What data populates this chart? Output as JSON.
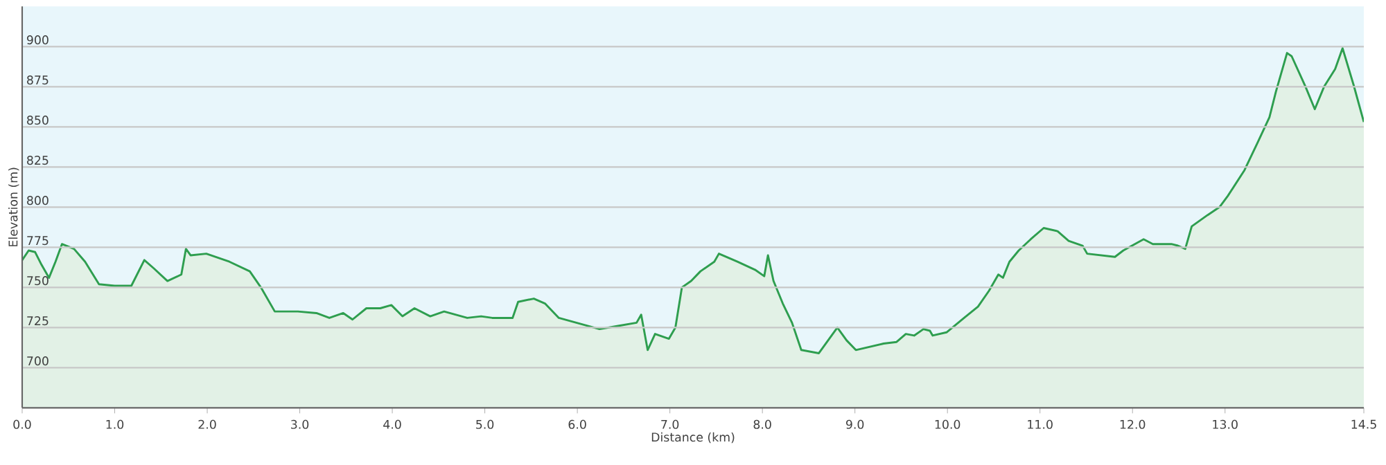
{
  "chart_data": {
    "type": "area",
    "xlabel": "Distance  (km)",
    "ylabel": "Elevation (m)",
    "color": "#2e9e4f",
    "grid": "y",
    "xlim": [
      0,
      14.5
    ],
    "ylim": [
      675,
      925
    ],
    "xticks": [
      {
        "value": 0,
        "label": "0.0"
      },
      {
        "value": 1,
        "label": "1.0"
      },
      {
        "value": 2,
        "label": "2.0"
      },
      {
        "value": 3,
        "label": "3.0"
      },
      {
        "value": 4,
        "label": "4.0"
      },
      {
        "value": 5,
        "label": "5.0"
      },
      {
        "value": 6,
        "label": "6.0"
      },
      {
        "value": 7,
        "label": "7.0"
      },
      {
        "value": 8,
        "label": "8.0"
      },
      {
        "value": 9,
        "label": "9.0"
      },
      {
        "value": 10,
        "label": "10.0"
      },
      {
        "value": 11,
        "label": "11.0"
      },
      {
        "value": 12,
        "label": "12.0"
      },
      {
        "value": 13,
        "label": "13.0"
      },
      {
        "value": 14.5,
        "label": "14.5"
      }
    ],
    "yticks": [
      700,
      725,
      750,
      775,
      800,
      825,
      850,
      875,
      900
    ],
    "x": [
      0,
      0.07,
      0.14,
      0.21,
      0.29,
      0.36,
      0.43,
      0.56,
      0.68,
      0.83,
      1.0,
      1.18,
      1.32,
      1.42,
      1.57,
      1.72,
      1.77,
      1.82,
      1.99,
      2.24,
      2.46,
      2.58,
      2.73,
      2.98,
      3.18,
      3.32,
      3.47,
      3.57,
      3.72,
      3.87,
      3.99,
      4.11,
      4.24,
      4.41,
      4.56,
      4.81,
      4.96,
      5.08,
      5.3,
      5.36,
      5.53,
      5.65,
      5.8,
      6.05,
      6.24,
      6.44,
      6.64,
      6.69,
      6.76,
      6.84,
      6.99,
      7.06,
      7.13,
      7.23,
      7.33,
      7.48,
      7.53,
      7.73,
      7.92,
      8.02,
      8.06,
      8.12,
      8.22,
      8.32,
      8.42,
      8.61,
      8.71,
      8.81,
      8.91,
      9.01,
      9.31,
      9.45,
      9.55,
      9.64,
      9.74,
      9.81,
      9.84,
      9.99,
      10.18,
      10.33,
      10.45,
      10.55,
      10.6,
      10.67,
      10.77,
      10.9,
      11.04,
      11.19,
      11.31,
      11.46,
      11.51,
      11.81,
      11.9,
      12.12,
      12.22,
      12.42,
      12.49,
      12.57,
      12.64,
      12.81,
      12.94,
      13.03,
      13.21,
      13.35,
      13.48,
      13.55,
      13.67,
      13.72,
      13.87,
      13.97,
      14.07,
      14.19,
      14.27,
      14.39,
      14.5
    ],
    "values": [
      767,
      773,
      772,
      764,
      756,
      766,
      777,
      774,
      766,
      752,
      751,
      751,
      767,
      762,
      754,
      758,
      774,
      770,
      771,
      766,
      760,
      750,
      735,
      735,
      734,
      731,
      734,
      730,
      737,
      737,
      739,
      732,
      737,
      732,
      735,
      731,
      732,
      731,
      731,
      741,
      743,
      740,
      731,
      727,
      724,
      726,
      728,
      733,
      711,
      721,
      718,
      725,
      750,
      754,
      760,
      766,
      771,
      766,
      761,
      757,
      770,
      754,
      740,
      728,
      711,
      709,
      717,
      725,
      717,
      711,
      715,
      716,
      721,
      720,
      724,
      723,
      720,
      722,
      731,
      738,
      748,
      758,
      756,
      766,
      773,
      780,
      787,
      785,
      779,
      776,
      771,
      769,
      773,
      780,
      777,
      777,
      776,
      774,
      788,
      795,
      800,
      807,
      823,
      840,
      856,
      872,
      896,
      894,
      875,
      861,
      875,
      886,
      899,
      876,
      853
    ]
  }
}
